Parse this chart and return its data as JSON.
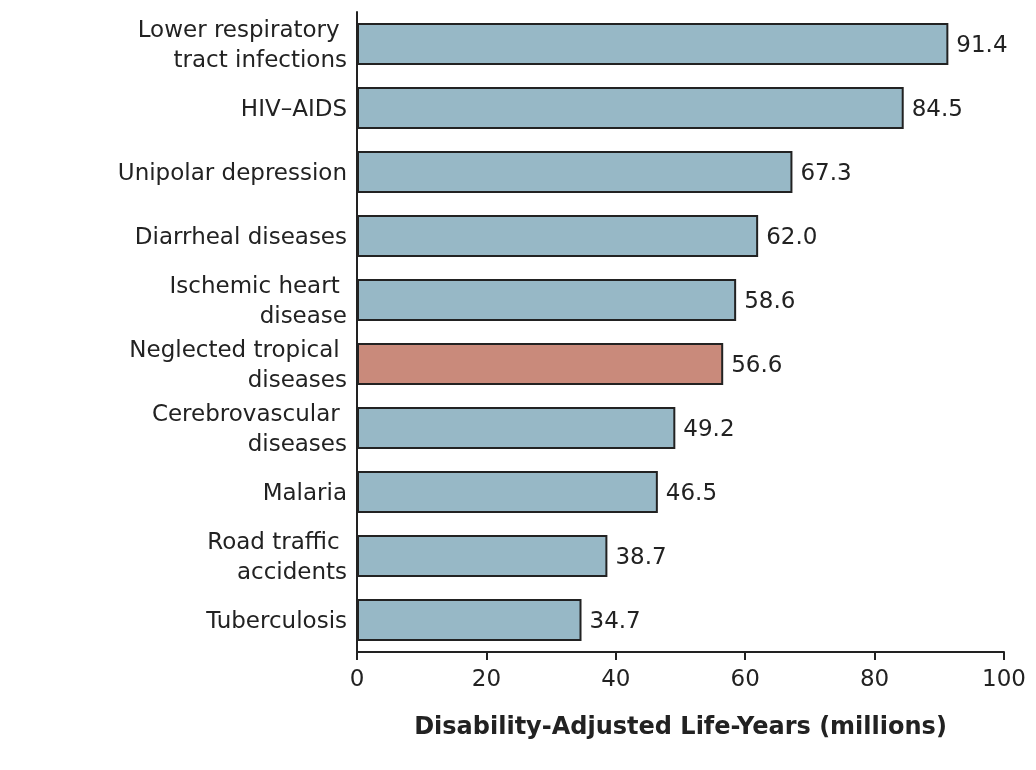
{
  "chart_data": {
    "type": "bar",
    "orientation": "horizontal",
    "xlabel": "Disability-Adjusted Life-Years (millions)",
    "categories": [
      "Lower respiratory tract infections",
      "HIV–AIDS",
      "Unipolar depression",
      "Diarrheal diseases",
      "Ischemic heart disease",
      "Neglected tropical diseases",
      "Cerebrovascular diseases",
      "Malaria",
      "Road traffic accidents",
      "Tuberculosis"
    ],
    "values": [
      91.4,
      84.5,
      67.3,
      62.0,
      58.6,
      56.6,
      49.2,
      46.5,
      38.7,
      34.7
    ],
    "value_labels": [
      "91.4",
      "84.5",
      "67.3",
      "62.0",
      "58.6",
      "56.6",
      "49.2",
      "46.5",
      "38.7",
      "34.7"
    ],
    "colors": [
      "#97b8c6",
      "#97b8c6",
      "#97b8c6",
      "#97b8c6",
      "#97b8c6",
      "#c98a7b",
      "#97b8c6",
      "#97b8c6",
      "#97b8c6",
      "#97b8c6"
    ],
    "xlim": [
      0,
      100
    ],
    "xticks": [
      0,
      20,
      40,
      60,
      80,
      100
    ],
    "grid": false
  }
}
